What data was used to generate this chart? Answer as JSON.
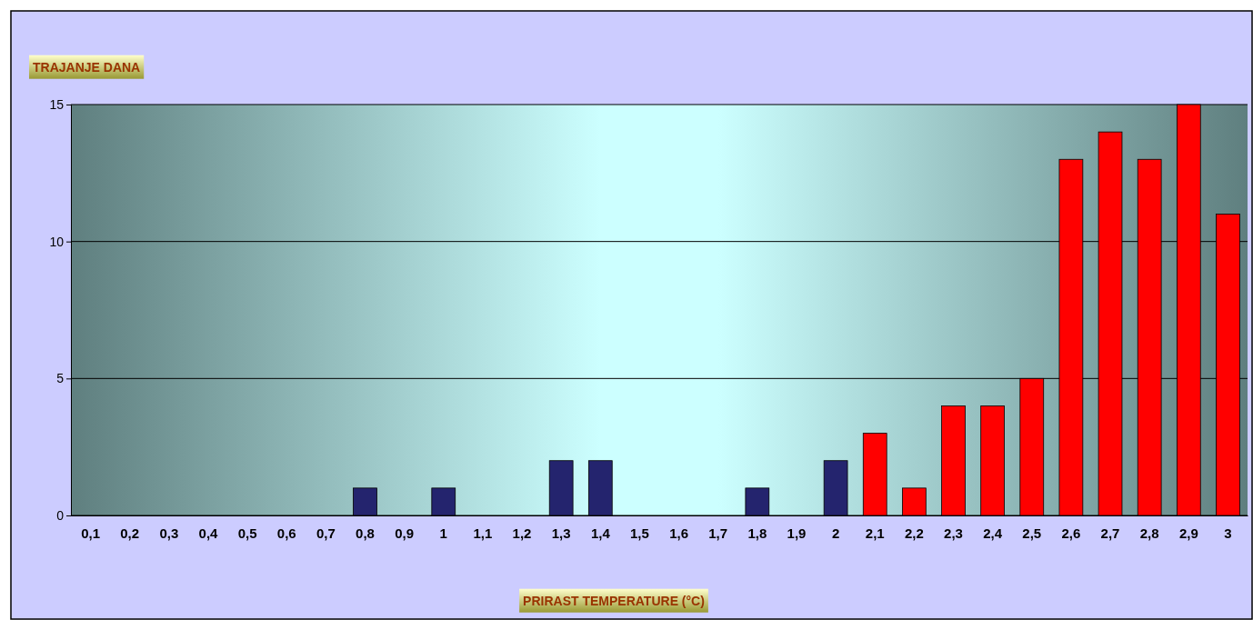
{
  "chart_data": {
    "type": "bar",
    "ylabel": "TRAJANJE DANA",
    "xlabel": "PRIRAST TEMPERATURE (°C)",
    "categories": [
      "0,1",
      "0,2",
      "0,3",
      "0,4",
      "0,5",
      "0,6",
      "0,7",
      "0,8",
      "0,9",
      "1",
      "1,1",
      "1,2",
      "1,3",
      "1,4",
      "1,5",
      "1,6",
      "1,7",
      "1,8",
      "1,9",
      "2",
      "2,1",
      "2,2",
      "2,3",
      "2,4",
      "2,5",
      "2,6",
      "2,7",
      "2,8",
      "2,9",
      "3"
    ],
    "values": [
      0,
      0,
      0,
      0,
      0,
      0,
      0,
      1,
      0,
      1,
      0,
      0,
      2,
      2,
      0,
      0,
      0,
      1,
      0,
      2,
      3,
      1,
      4,
      4,
      5,
      13,
      14,
      13,
      15,
      11
    ],
    "colors": [
      "#24246e",
      "#24246e",
      "#24246e",
      "#24246e",
      "#24246e",
      "#24246e",
      "#24246e",
      "#24246e",
      "#24246e",
      "#24246e",
      "#24246e",
      "#24246e",
      "#24246e",
      "#24246e",
      "#24246e",
      "#24246e",
      "#24246e",
      "#24246e",
      "#24246e",
      "#24246e",
      "#ff0000",
      "#ff0000",
      "#ff0000",
      "#ff0000",
      "#ff0000",
      "#ff0000",
      "#ff0000",
      "#ff0000",
      "#ff0000",
      "#ff0000"
    ],
    "ylim": [
      0,
      15
    ],
    "yticks": [
      0,
      5,
      10,
      15
    ],
    "grid": "y"
  }
}
